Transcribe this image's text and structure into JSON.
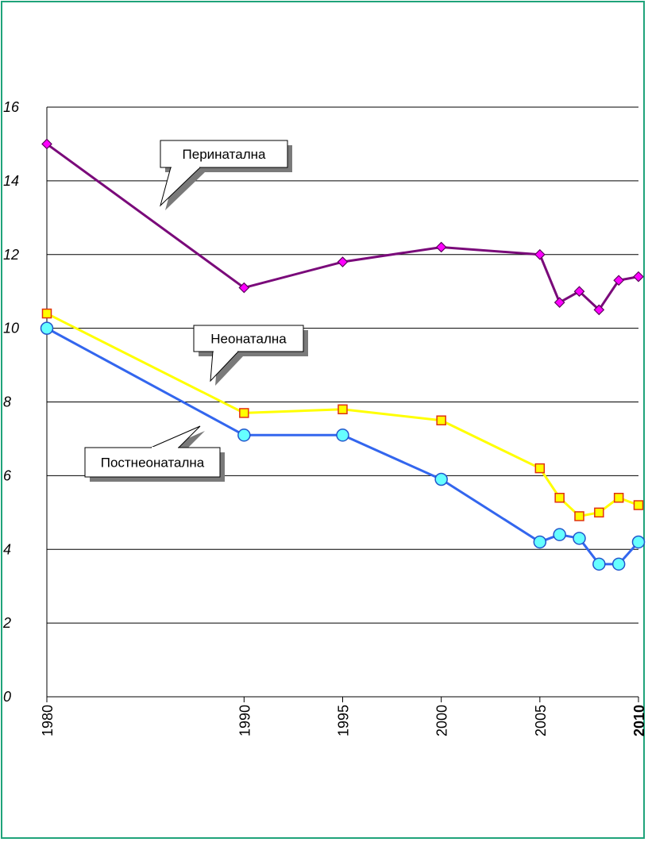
{
  "chart_data": {
    "type": "line",
    "title": "",
    "xlabel": "",
    "ylabel": "",
    "ylim": [
      0,
      16
    ],
    "yticks": [
      "0",
      "2",
      "4",
      "6",
      "8",
      "10",
      "12",
      "14",
      "16"
    ],
    "xlim": [
      1980,
      2010
    ],
    "xticks": [
      {
        "value": 1980,
        "label": "1980",
        "bold": false
      },
      {
        "value": 1990,
        "label": "1990",
        "bold": false
      },
      {
        "value": 1995,
        "label": "1995",
        "bold": false
      },
      {
        "value": 2000,
        "label": "2000",
        "bold": false
      },
      {
        "value": 2005,
        "label": "2005",
        "bold": false
      },
      {
        "value": 2010,
        "label": "2010",
        "bold": true
      }
    ],
    "grid": "horizontal",
    "x": [
      1980,
      1990,
      1995,
      2000,
      2005,
      2006,
      2007,
      2008,
      2009,
      2010
    ],
    "series": [
      {
        "name": "Перинатална",
        "color": "#7a0a7a",
        "marker": "diamond",
        "marker_color": "#ff00ff",
        "values": [
          15.0,
          11.1,
          11.8,
          12.2,
          12.0,
          10.7,
          11.0,
          10.5,
          11.3,
          11.4
        ]
      },
      {
        "name": "Неонатална",
        "color": "#ffff00",
        "marker": "square",
        "marker_color": "#ffff00",
        "values": [
          10.4,
          7.7,
          7.8,
          7.5,
          6.2,
          5.4,
          4.9,
          5.0,
          5.4,
          5.2
        ]
      },
      {
        "name": "Постнеонатална",
        "color": "#3366ee",
        "marker": "circle",
        "marker_color": "#66ffff",
        "values": [
          10.0,
          7.1,
          7.1,
          5.9,
          4.2,
          4.4,
          4.3,
          3.6,
          3.6,
          4.2
        ]
      }
    ]
  },
  "callouts": [
    {
      "text": "Перинатална",
      "series": 0
    },
    {
      "text": "Неонатална",
      "series": 1
    },
    {
      "text": "Постнеонатална",
      "series": 2
    }
  ]
}
